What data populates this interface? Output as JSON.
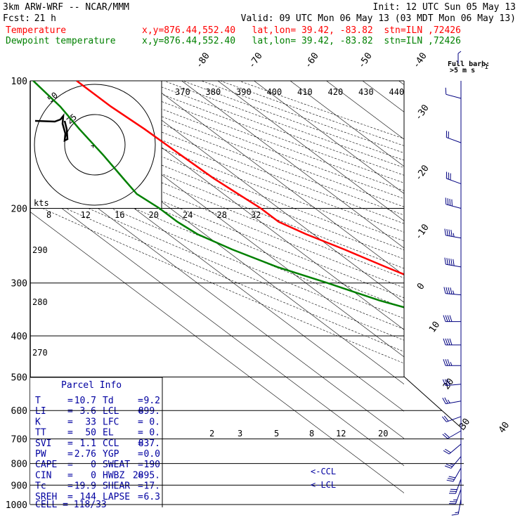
{
  "header": {
    "model": "3km ARW-WRF -- NCAR/MMM",
    "init": "Init: 12 UTC Sun 05 May 13",
    "fcst_label": "Fcst:",
    "fcst_value": "21 h",
    "valid": "Valid: 09 UTC Mon 06 May 13 (03 MDT Mon 06 May 13)",
    "series": [
      {
        "name": "Temperature",
        "color": "#ff0000",
        "info": "x,y=876.44,552.40   lat,lon= 39.42, -83.82  stn=ILN ,72426"
      },
      {
        "name": "Dewpoint temperature",
        "color": "#008000",
        "info": "x,y=876.44,552.40   lat,lon= 39.42, -83.82  stn=ILN ,72426"
      }
    ]
  },
  "barb_legend": {
    "line1": "Full barb:",
    "line2": ">5 m s",
    "exp": "-1"
  },
  "hodograph": {
    "ring_labels": [
      "50",
      "25"
    ],
    "kts_label": "kts",
    "center": "+"
  },
  "parcel": {
    "title": "Parcel Info",
    "rows": [
      {
        "l": "T",
        "lv": "10.7",
        "r": "Td",
        "rv": "9.2"
      },
      {
        "l": "LI",
        "lv": "3.6",
        "r": "LCL",
        "rv": "899."
      },
      {
        "l": "K",
        "lv": "33",
        "r": "LFC",
        "rv": "0."
      },
      {
        "l": "TT",
        "lv": "50",
        "r": "EL",
        "rv": "0."
      },
      {
        "l": "SVI",
        "lv": "1.1",
        "r": "CCL",
        "rv": "837."
      },
      {
        "l": "PW",
        "lv": "2.76",
        "r": "YGP",
        "rv": "0.0"
      },
      {
        "l": "CAPE",
        "lv": "0",
        "r": "SWEAT",
        "rv": "190"
      },
      {
        "l": "CIN",
        "lv": "0",
        "r": "HWBZ",
        "rv": "2895."
      },
      {
        "l": "Tc",
        "lv": "19.9",
        "r": "SHEAR",
        "rv": "17."
      },
      {
        "l": "SREH",
        "lv": "144",
        "r": "LAPSE",
        "rv": "6.3"
      }
    ],
    "cell": "CELL = 118/33"
  },
  "level_markers": {
    "ccl": "<-CCL",
    "lcl": "<-LCL"
  },
  "chart_data": {
    "type": "line",
    "title": "",
    "xlabel": "",
    "ylabel": "",
    "yscale": "log",
    "y_reversed": true,
    "ylim": [
      1000,
      100
    ],
    "pressure_labels": [
      "100",
      "200",
      "300",
      "400",
      "500",
      "600",
      "700",
      "800",
      "900",
      "1000"
    ],
    "isotherm_labels": [
      "-80",
      "-70",
      "-60",
      "-50",
      "-40",
      "-30",
      "-20",
      "-10",
      "0",
      "10",
      "20",
      "30",
      "40"
    ],
    "theta_labels": [
      "370",
      "380",
      "390",
      "400",
      "410",
      "420",
      "430",
      "440"
    ],
    "theta_left_labels": [
      "290",
      "280",
      "270"
    ],
    "mixing_ratio_labels_upper": [
      "8",
      "12",
      "16",
      "20",
      "24",
      "28",
      "32"
    ],
    "mixing_ratio_labels_lower": [
      "2",
      "3",
      "5",
      "8",
      "12",
      "20"
    ],
    "series": [
      {
        "name": "Temperature",
        "color": "#ff0000",
        "points": [
          [
            100,
            -59
          ],
          [
            115,
            -59
          ],
          [
            130,
            -58
          ],
          [
            150,
            -57.5
          ],
          [
            170,
            -57
          ],
          [
            185,
            -56
          ],
          [
            200,
            -55
          ],
          [
            215,
            -55
          ],
          [
            230,
            -52
          ],
          [
            250,
            -47
          ],
          [
            275,
            -42
          ],
          [
            300,
            -37
          ],
          [
            330,
            -31
          ],
          [
            360,
            -25
          ],
          [
            400,
            -19
          ],
          [
            430,
            -15
          ],
          [
            470,
            -10
          ],
          [
            490,
            -8
          ],
          [
            505,
            -6
          ],
          [
            530,
            -4
          ],
          [
            560,
            -1.5
          ],
          [
            600,
            1.5
          ],
          [
            650,
            4.5
          ],
          [
            700,
            7.5
          ],
          [
            750,
            9.5
          ],
          [
            790,
            11.5
          ],
          [
            820,
            13
          ],
          [
            850,
            15.5
          ],
          [
            880,
            17
          ],
          [
            900,
            17.5
          ],
          [
            930,
            15
          ],
          [
            960,
            11.5
          ],
          [
            985,
            10.7
          ]
        ]
      },
      {
        "name": "Dewpoint temperature",
        "color": "#008000",
        "points": [
          [
            100,
            -71
          ],
          [
            115,
            -73
          ],
          [
            130,
            -76
          ],
          [
            150,
            -79
          ],
          [
            170,
            -82
          ],
          [
            185,
            -84
          ],
          [
            200,
            -83
          ],
          [
            215,
            -83
          ],
          [
            230,
            -82
          ],
          [
            250,
            -78
          ],
          [
            275,
            -72
          ],
          [
            300,
            -64
          ],
          [
            330,
            -56
          ],
          [
            360,
            -46
          ],
          [
            400,
            -38
          ],
          [
            430,
            -33
          ],
          [
            470,
            -27
          ],
          [
            490,
            -23
          ],
          [
            505,
            -13
          ],
          [
            530,
            -8
          ],
          [
            560,
            -3
          ],
          [
            600,
            1
          ],
          [
            650,
            4
          ],
          [
            700,
            5.5
          ],
          [
            750,
            7
          ],
          [
            790,
            8.2
          ],
          [
            820,
            8.7
          ],
          [
            850,
            9.2
          ],
          [
            880,
            9.5
          ],
          [
            900,
            9.6
          ],
          [
            930,
            9.4
          ],
          [
            960,
            9.2
          ],
          [
            985,
            9.2
          ]
        ]
      }
    ],
    "wind_barbs_kts": [
      {
        "p": 110,
        "dir": 285,
        "spd": 12
      },
      {
        "p": 140,
        "dir": 290,
        "spd": 22
      },
      {
        "p": 175,
        "dir": 290,
        "spd": 30
      },
      {
        "p": 200,
        "dir": 285,
        "spd": 42
      },
      {
        "p": 235,
        "dir": 280,
        "spd": 48
      },
      {
        "p": 275,
        "dir": 280,
        "spd": 50
      },
      {
        "p": 320,
        "dir": 275,
        "spd": 48
      },
      {
        "p": 370,
        "dir": 270,
        "spd": 42
      },
      {
        "p": 420,
        "dir": 270,
        "spd": 40
      },
      {
        "p": 470,
        "dir": 270,
        "spd": 38
      },
      {
        "p": 520,
        "dir": 265,
        "spd": 32
      },
      {
        "p": 570,
        "dir": 260,
        "spd": 28
      },
      {
        "p": 620,
        "dir": 250,
        "spd": 22
      },
      {
        "p": 670,
        "dir": 240,
        "spd": 20
      },
      {
        "p": 720,
        "dir": 230,
        "spd": 22
      },
      {
        "p": 770,
        "dir": 220,
        "spd": 28
      },
      {
        "p": 820,
        "dir": 210,
        "spd": 32
      },
      {
        "p": 870,
        "dir": 200,
        "spd": 30
      },
      {
        "p": 920,
        "dir": 200,
        "spd": 25
      },
      {
        "p": 970,
        "dir": 190,
        "spd": 15
      }
    ]
  }
}
